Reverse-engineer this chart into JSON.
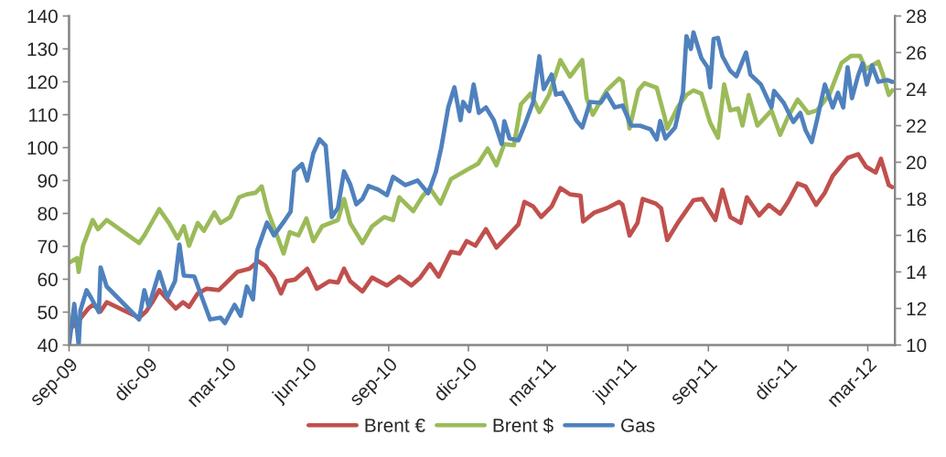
{
  "chart_data": {
    "type": "line",
    "xlim": [
      "2009-09-01",
      "2012-04-01"
    ],
    "xticks": [
      {
        "value": "2009-09-01",
        "label": "sep-09"
      },
      {
        "value": "2009-12-01",
        "label": "dic-09"
      },
      {
        "value": "2010-03-01",
        "label": "mar-10"
      },
      {
        "value": "2010-06-01",
        "label": "jun-10"
      },
      {
        "value": "2010-09-01",
        "label": "sep-10"
      },
      {
        "value": "2010-12-01",
        "label": "dic-10"
      },
      {
        "value": "2011-03-01",
        "label": "mar-11"
      },
      {
        "value": "2011-06-01",
        "label": "jun-11"
      },
      {
        "value": "2011-09-01",
        "label": "sep-11"
      },
      {
        "value": "2011-12-01",
        "label": "dic-11"
      },
      {
        "value": "2012-03-01",
        "label": "mar-12"
      }
    ],
    "ylim": [
      40,
      140
    ],
    "yticks": [
      40,
      50,
      60,
      70,
      80,
      90,
      100,
      110,
      120,
      130,
      140
    ],
    "y2lim": [
      10,
      28
    ],
    "y2ticks": [
      10,
      12,
      14,
      16,
      18,
      20,
      22,
      24,
      26,
      28
    ],
    "legend": "bottom",
    "grid": false,
    "line_style": "solid",
    "marker": "none",
    "series": [
      {
        "name": "Brent €",
        "color": "#c0504d",
        "x": [
          "2009-09-01",
          "2009-09-12",
          "2009-09-23",
          "2009-09-29",
          "2009-10-07",
          "2009-10-14",
          "2009-11-20",
          "2009-11-28",
          "2009-12-05",
          "2009-12-13",
          "2009-12-22",
          "2010-01-01",
          "2010-01-09",
          "2010-01-16",
          "2010-01-26",
          "2010-02-05",
          "2010-02-19",
          "2010-02-26",
          "2010-03-12",
          "2010-03-26",
          "2010-04-05",
          "2010-04-13",
          "2010-04-23",
          "2010-05-01",
          "2010-05-07",
          "2010-05-17",
          "2010-05-31",
          "2010-06-11",
          "2010-06-25",
          "2010-07-05",
          "2010-07-12",
          "2010-07-19",
          "2010-08-02",
          "2010-08-13",
          "2010-08-30",
          "2010-09-13",
          "2010-09-27",
          "2010-10-07",
          "2010-10-18",
          "2010-10-28",
          "2010-11-11",
          "2010-11-21",
          "2010-11-29",
          "2010-12-09",
          "2010-12-21",
          "2011-01-02",
          "2011-01-17",
          "2011-01-27",
          "2011-02-03",
          "2011-02-13",
          "2011-02-22",
          "2011-03-06",
          "2011-03-16",
          "2011-03-27",
          "2011-04-08",
          "2011-04-11",
          "2011-04-24",
          "2011-05-08",
          "2011-05-22",
          "2011-05-26",
          "2011-06-03",
          "2011-06-12",
          "2011-06-18",
          "2011-07-03",
          "2011-07-09",
          "2011-07-16",
          "2011-07-28",
          "2011-08-15",
          "2011-08-25",
          "2011-09-09",
          "2011-09-17",
          "2011-09-26",
          "2011-10-08",
          "2011-10-15",
          "2011-10-29",
          "2011-11-09",
          "2011-11-22",
          "2011-12-01",
          "2011-12-12",
          "2011-12-21",
          "2012-01-02",
          "2012-01-12",
          "2012-01-21",
          "2012-02-07",
          "2012-02-19",
          "2012-02-28",
          "2012-03-10",
          "2012-03-16",
          "2012-03-25",
          "2012-03-29"
        ],
        "values": [
          44.6,
          47.4,
          51.1,
          52.4,
          50.2,
          53,
          48.3,
          50.2,
          53,
          56.7,
          53.9,
          51.1,
          53,
          51.6,
          55.7,
          57.1,
          56.7,
          58.5,
          62.2,
          63.2,
          65.5,
          64.1,
          60.5,
          55.7,
          59.4,
          59.9,
          63.2,
          57.1,
          59.4,
          59,
          63.2,
          59.4,
          56.3,
          60.5,
          58.1,
          60.8,
          58.1,
          60.5,
          64.6,
          60.8,
          68.3,
          67.8,
          71.6,
          70.2,
          75.2,
          69.6,
          73.8,
          76.6,
          83.5,
          82.1,
          78.9,
          82.1,
          87.7,
          85.8,
          85.4,
          77.5,
          80.3,
          81.6,
          83.5,
          82.6,
          73.3,
          77.1,
          84.4,
          83,
          81.6,
          71.9,
          77.1,
          84,
          84.4,
          78,
          87.2,
          78.9,
          77.1,
          84.9,
          79.4,
          82.6,
          79.9,
          83.5,
          89.1,
          88.2,
          82.6,
          86.3,
          91.4,
          96.9,
          98,
          94.2,
          92.4,
          96.6,
          88.6,
          88
        ]
      },
      {
        "name": "Brent $",
        "color": "#9bbb59",
        "x": [
          "2009-09-01",
          "2009-09-10",
          "2009-09-12",
          "2009-09-17",
          "2009-09-28",
          "2009-10-04",
          "2009-10-14",
          "2009-11-20",
          "2009-11-26",
          "2009-12-13",
          "2009-12-24",
          "2010-01-03",
          "2010-01-10",
          "2010-01-16",
          "2010-01-26",
          "2010-02-02",
          "2010-02-14",
          "2010-02-21",
          "2010-03-04",
          "2010-03-14",
          "2010-03-23",
          "2010-04-02",
          "2010-04-09",
          "2010-04-16",
          "2010-04-25",
          "2010-05-04",
          "2010-05-11",
          "2010-05-21",
          "2010-05-30",
          "2010-06-07",
          "2010-06-17",
          "2010-07-05",
          "2010-07-12",
          "2010-07-19",
          "2010-08-02",
          "2010-08-13",
          "2010-08-27",
          "2010-09-06",
          "2010-09-13",
          "2010-09-29",
          "2010-10-10",
          "2010-10-18",
          "2010-10-30",
          "2010-11-11",
          "2010-11-29",
          "2010-12-12",
          "2010-12-23",
          "2011-01-02",
          "2011-01-11",
          "2011-01-22",
          "2011-01-30",
          "2011-02-10",
          "2011-02-20",
          "2011-03-03",
          "2011-03-16",
          "2011-03-27",
          "2011-04-10",
          "2011-04-15",
          "2011-04-22",
          "2011-05-08",
          "2011-05-22",
          "2011-05-26",
          "2011-06-03",
          "2011-06-13",
          "2011-06-20",
          "2011-07-04",
          "2011-07-13",
          "2011-07-16",
          "2011-07-28",
          "2011-08-07",
          "2011-08-15",
          "2011-08-24",
          "2011-09-03",
          "2011-09-12",
          "2011-09-19",
          "2011-09-26",
          "2011-10-05",
          "2011-10-10",
          "2011-10-17",
          "2011-10-27",
          "2011-11-12",
          "2011-11-22",
          "2011-12-01",
          "2011-12-12",
          "2011-12-24",
          "2012-01-03",
          "2012-01-17",
          "2012-01-31",
          "2012-02-11",
          "2012-02-21",
          "2012-02-28",
          "2012-03-13",
          "2012-03-18",
          "2012-03-25",
          "2012-03-29"
        ],
        "values": [
          65,
          66.4,
          62.2,
          70.2,
          78,
          75.2,
          78,
          71,
          73.3,
          81.3,
          77.1,
          72.4,
          76.1,
          70.2,
          77.1,
          74.7,
          80.3,
          77.1,
          78.9,
          84.9,
          85.8,
          86.3,
          88.2,
          80.7,
          74.3,
          67.8,
          74.3,
          73.3,
          78.5,
          71.6,
          76.1,
          78,
          84.4,
          77.1,
          71,
          76.1,
          78.9,
          78,
          84.9,
          80.7,
          85.4,
          87.7,
          83,
          90.4,
          93.2,
          95.1,
          99.7,
          94.6,
          101.1,
          100.7,
          113.2,
          116.4,
          110.8,
          116,
          126.6,
          121.6,
          126.6,
          115,
          110,
          117.4,
          121,
          120.2,
          105.8,
          117.4,
          119.6,
          118.2,
          109.4,
          105.8,
          112.3,
          116,
          117.4,
          116.4,
          107.6,
          103,
          119.2,
          111.3,
          111.9,
          106.7,
          116,
          106.7,
          111.3,
          103.9,
          109.4,
          114.6,
          110.5,
          111.3,
          116,
          125.7,
          127.9,
          127.9,
          123.8,
          126.1,
          122.4,
          116,
          117.4
        ]
      },
      {
        "name": "Gas",
        "color": "#4f81bd",
        "axis": "y2",
        "x": [
          "2009-09-01",
          "2009-09-07",
          "2009-09-12",
          "2009-09-14",
          "2009-09-21",
          "2009-09-26",
          "2009-10-05",
          "2009-10-07",
          "2009-10-14",
          "2009-11-20",
          "2009-11-26",
          "2009-12-01",
          "2009-12-13",
          "2009-12-22",
          "2009-12-31",
          "2010-01-05",
          "2010-01-10",
          "2010-01-22",
          "2010-01-30",
          "2010-02-09",
          "2010-02-21",
          "2010-02-26",
          "2010-03-09",
          "2010-03-16",
          "2010-03-23",
          "2010-03-30",
          "2010-04-04",
          "2010-04-15",
          "2010-04-23",
          "2010-05-05",
          "2010-05-12",
          "2010-05-16",
          "2010-05-25",
          "2010-05-31",
          "2010-06-07",
          "2010-06-14",
          "2010-06-21",
          "2010-06-28",
          "2010-07-05",
          "2010-07-12",
          "2010-07-19",
          "2010-07-26",
          "2010-08-02",
          "2010-08-09",
          "2010-08-20",
          "2010-08-30",
          "2010-09-06",
          "2010-09-20",
          "2010-10-04",
          "2010-10-16",
          "2010-10-25",
          "2010-10-31",
          "2010-11-08",
          "2010-11-15",
          "2010-11-22",
          "2010-11-25",
          "2010-12-02",
          "2010-12-07",
          "2010-12-13",
          "2010-12-21",
          "2010-12-30",
          "2011-01-08",
          "2011-01-11",
          "2011-01-17",
          "2011-01-27",
          "2011-02-03",
          "2011-02-13",
          "2011-02-20",
          "2011-02-25",
          "2011-03-06",
          "2011-03-11",
          "2011-03-18",
          "2011-03-27",
          "2011-04-03",
          "2011-04-10",
          "2011-04-19",
          "2011-05-01",
          "2011-05-08",
          "2011-05-17",
          "2011-05-26",
          "2011-06-05",
          "2011-06-15",
          "2011-06-27",
          "2011-07-04",
          "2011-07-08",
          "2011-07-14",
          "2011-07-25",
          "2011-08-03",
          "2011-08-07",
          "2011-08-12",
          "2011-08-15",
          "2011-08-24",
          "2011-08-31",
          "2011-09-03",
          "2011-09-07",
          "2011-09-12",
          "2011-09-17",
          "2011-09-26",
          "2011-10-03",
          "2011-10-14",
          "2011-10-19",
          "2011-10-31",
          "2011-11-12",
          "2011-11-15",
          "2011-11-26",
          "2011-12-07",
          "2011-12-15",
          "2011-12-21",
          "2011-12-28",
          "2012-01-03",
          "2012-01-12",
          "2012-01-21",
          "2012-01-27",
          "2012-02-02",
          "2012-02-07",
          "2012-02-12",
          "2012-02-19",
          "2012-02-24",
          "2012-02-29",
          "2012-03-06",
          "2012-03-13",
          "2012-03-23",
          "2012-03-29"
        ],
        "values": [
          10,
          12.25,
          10,
          11.9,
          13,
          12.6,
          11.8,
          14.25,
          13.2,
          11.4,
          13,
          12.1,
          14,
          12.6,
          13.5,
          15.5,
          13.8,
          13.75,
          12.7,
          11.4,
          11.5,
          11.2,
          12.2,
          11.6,
          13.2,
          12.5,
          15.2,
          16.7,
          16,
          16.8,
          17.3,
          19.5,
          19.9,
          19,
          20.5,
          21.25,
          20.9,
          17,
          17.5,
          19.5,
          18.8,
          17.7,
          18,
          18.7,
          18.5,
          18.2,
          19.2,
          18.75,
          19,
          18.3,
          19.5,
          20.8,
          23,
          24.1,
          22.3,
          23.3,
          22.8,
          24.25,
          22.7,
          23,
          22.3,
          21,
          22.25,
          21.3,
          21.2,
          22,
          23.3,
          25.8,
          24,
          24.8,
          23.7,
          23.8,
          23,
          22.3,
          21.9,
          23.3,
          23.25,
          23.75,
          23,
          23.1,
          22,
          22,
          21.8,
          21.25,
          22.25,
          21.3,
          21.9,
          23.8,
          26.9,
          26.2,
          27.1,
          25.7,
          25.2,
          24.1,
          26.75,
          26.8,
          25.8,
          25,
          24.7,
          26,
          24.8,
          24.25,
          23,
          23.9,
          23.25,
          22.2,
          22.7,
          21.75,
          21.1,
          22.3,
          24.25,
          23,
          23.8,
          23,
          25.2,
          23.5,
          24.75,
          25.4,
          24.25,
          25.3,
          24.4,
          24.5,
          24.4
        ]
      }
    ]
  }
}
